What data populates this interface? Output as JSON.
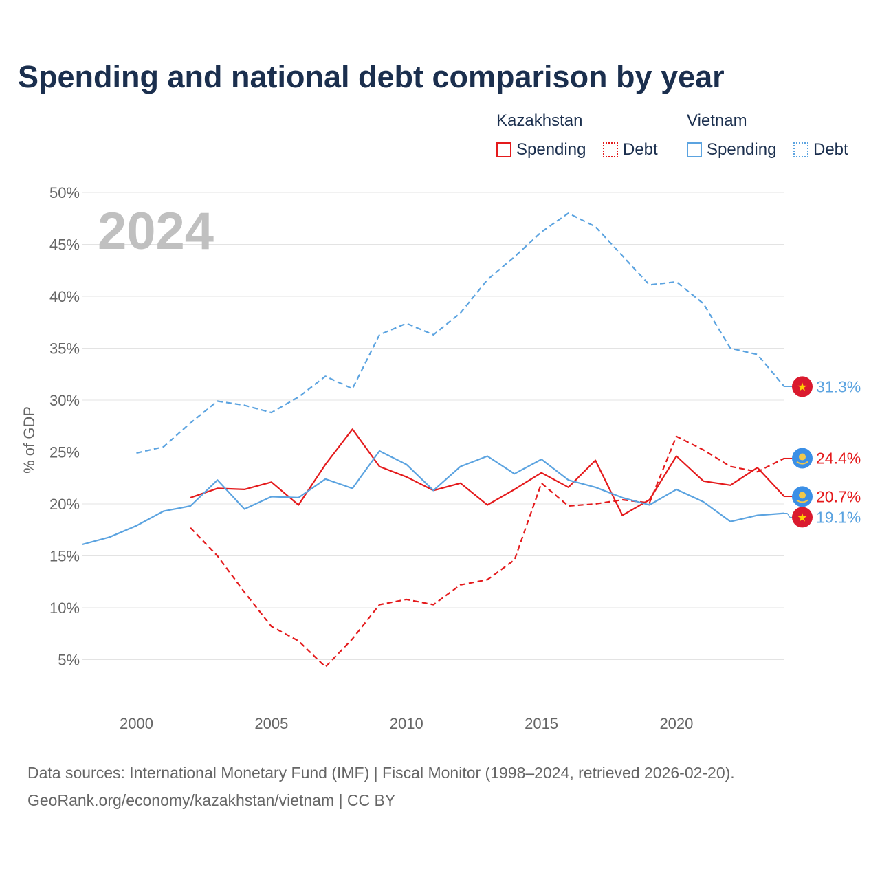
{
  "title": "Spending and national debt comparison by year",
  "legend": {
    "groups": [
      {
        "country": "Kazakhstan",
        "items": [
          {
            "label": "Spending",
            "style": "solid",
            "color": "#e41a1c"
          },
          {
            "label": "Debt",
            "style": "dotted",
            "color": "#e41a1c"
          }
        ]
      },
      {
        "country": "Vietnam",
        "items": [
          {
            "label": "Spending",
            "style": "solid",
            "color": "#5ba3e0"
          },
          {
            "label": "Debt",
            "style": "dotted",
            "color": "#5ba3e0"
          }
        ]
      }
    ]
  },
  "year_label": "2024",
  "footer": {
    "line1": "Data sources: International Monetary Fund (IMF) | Fiscal Monitor (1998–2024, retrieved 2026-02-20).",
    "line2": "GeoRank.org/economy/kazakhstan/vietnam | CC BY"
  },
  "flag_icons": {
    "kazakhstan": "kazakhstan-flag-icon",
    "vietnam": "vietnam-flag-icon"
  },
  "chart_data": {
    "type": "line",
    "title": "Spending and national debt comparison by year",
    "xlabel": "",
    "ylabel": "% of GDP",
    "xlim": [
      1998,
      2024
    ],
    "ylim": [
      0,
      50
    ],
    "xticks": [
      2000,
      2005,
      2010,
      2015,
      2020
    ],
    "xtick_labels": [
      "2000",
      "2005",
      "2010",
      "2015",
      "2020"
    ],
    "yticks": [
      5,
      10,
      15,
      20,
      25,
      30,
      35,
      40,
      45,
      50
    ],
    "ytick_labels": [
      "5%",
      "10%",
      "15%",
      "20%",
      "25%",
      "30%",
      "35%",
      "40%",
      "45%",
      "50%"
    ],
    "grid": true,
    "series": [
      {
        "name": "Kazakhstan Spending",
        "country": "kazakhstan",
        "color": "#e41a1c",
        "dash": "solid",
        "x": [
          2002,
          2003,
          2004,
          2005,
          2006,
          2007,
          2008,
          2009,
          2010,
          2011,
          2012,
          2013,
          2014,
          2015,
          2016,
          2017,
          2018,
          2019,
          2020,
          2021,
          2022,
          2023,
          2024
        ],
        "y": [
          20.6,
          21.5,
          21.4,
          22.1,
          19.9,
          23.8,
          27.2,
          23.6,
          22.6,
          21.3,
          22.0,
          19.9,
          21.4,
          23.0,
          21.6,
          24.2,
          18.9,
          20.4,
          24.6,
          22.2,
          21.8,
          23.5,
          20.7
        ],
        "end_label": "20.7%"
      },
      {
        "name": "Kazakhstan Debt",
        "country": "kazakhstan",
        "color": "#e41a1c",
        "dash": "dashed",
        "x": [
          2002,
          2003,
          2004,
          2005,
          2006,
          2007,
          2008,
          2009,
          2010,
          2011,
          2012,
          2013,
          2014,
          2015,
          2016,
          2017,
          2018,
          2019,
          2020,
          2021,
          2022,
          2023,
          2024
        ],
        "y": [
          17.7,
          15.0,
          11.5,
          8.2,
          6.8,
          4.3,
          7.0,
          10.3,
          10.8,
          10.3,
          12.2,
          12.7,
          14.6,
          22.0,
          19.8,
          20.0,
          20.4,
          20.1,
          26.5,
          25.2,
          23.6,
          23.1,
          24.4
        ],
        "end_label": "24.4%"
      },
      {
        "name": "Vietnam Spending",
        "country": "vietnam",
        "color": "#5ba3e0",
        "dash": "solid",
        "x": [
          1998,
          1999,
          2000,
          2001,
          2002,
          2003,
          2004,
          2005,
          2006,
          2007,
          2008,
          2009,
          2010,
          2011,
          2012,
          2013,
          2014,
          2015,
          2016,
          2017,
          2018,
          2019,
          2020,
          2021,
          2022,
          2023,
          2024
        ],
        "y": [
          16.1,
          16.8,
          17.9,
          19.3,
          19.8,
          22.3,
          19.5,
          20.7,
          20.6,
          22.4,
          21.5,
          25.1,
          23.8,
          21.3,
          23.6,
          24.6,
          22.9,
          24.3,
          22.3,
          21.6,
          20.6,
          19.9,
          21.4,
          20.2,
          18.3,
          18.9,
          19.1
        ],
        "end_label": "19.1%"
      },
      {
        "name": "Vietnam Debt",
        "country": "vietnam",
        "color": "#5ba3e0",
        "dash": "dashed",
        "x": [
          2000,
          2001,
          2002,
          2003,
          2004,
          2005,
          2006,
          2007,
          2008,
          2009,
          2010,
          2011,
          2012,
          2013,
          2014,
          2015,
          2016,
          2017,
          2018,
          2019,
          2020,
          2021,
          2022,
          2023,
          2024
        ],
        "y": [
          24.9,
          25.5,
          27.8,
          29.9,
          29.5,
          28.8,
          30.3,
          32.3,
          31.1,
          36.3,
          37.4,
          36.3,
          38.4,
          41.6,
          43.8,
          46.2,
          48.0,
          46.7,
          43.9,
          41.1,
          41.4,
          39.3,
          35.0,
          34.4,
          31.3
        ],
        "end_label": "31.3%"
      }
    ]
  }
}
